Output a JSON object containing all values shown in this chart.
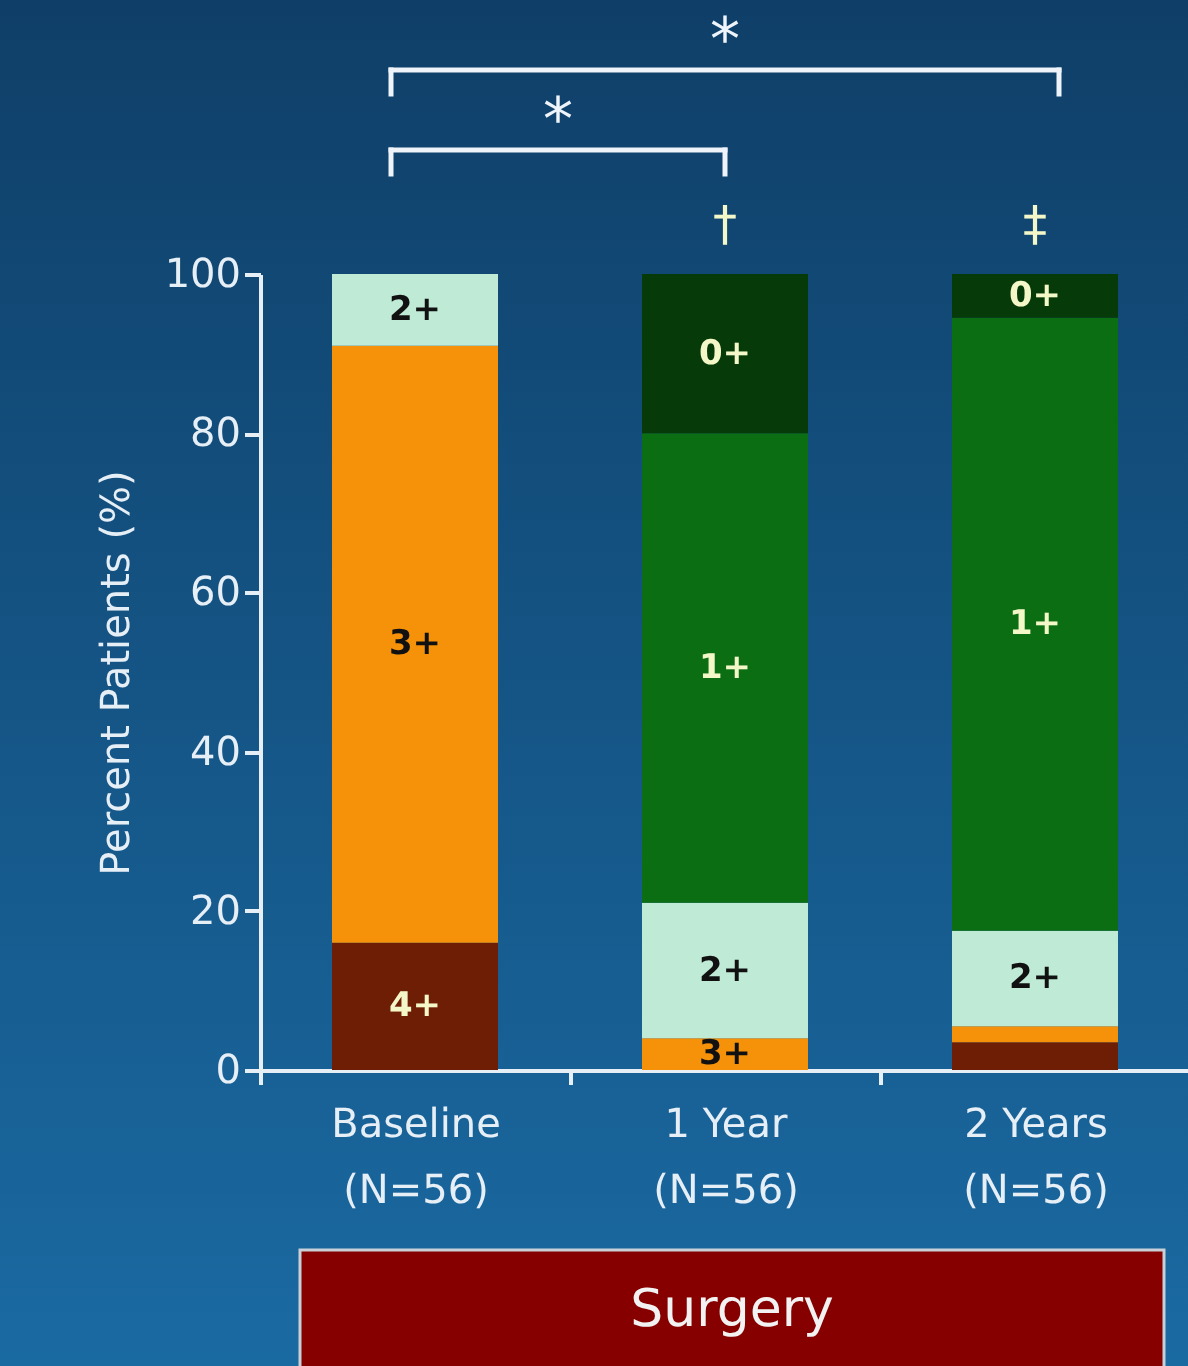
{
  "chart_data": {
    "type": "bar",
    "stacked": true,
    "ylabel": "Percent Patients (%)",
    "categories": [
      "Baseline\n(N=56)",
      "1 Year\n(N=56)",
      "2 Years\n(N=56)"
    ],
    "series": [
      {
        "name": "4+",
        "color": "#6e1e05",
        "values": [
          16,
          null,
          3.5
        ]
      },
      {
        "name": "3+",
        "color": "#f5920a",
        "values": [
          75,
          4,
          2
        ]
      },
      {
        "name": "2+",
        "color": "#bfead6",
        "values": [
          9,
          17,
          12
        ]
      },
      {
        "name": "1+",
        "color": "#0b6e12",
        "values": [
          null,
          59,
          77
        ]
      },
      {
        "name": "0+",
        "color": "#063a08",
        "values": [
          null,
          20,
          5.5
        ]
      }
    ],
    "ylim": [
      0,
      100
    ],
    "yticks": [
      0,
      20,
      40,
      60,
      80,
      100
    ],
    "grid": false,
    "legend": false,
    "annotations": [
      "*",
      "*",
      {
        "text": "†",
        "x": "1 Year\n(N=56)",
        "y": 100
      },
      {
        "text": "‡",
        "x": "2 Years\n(N=56)",
        "y": 100
      },
      "Surgery"
    ]
  }
}
